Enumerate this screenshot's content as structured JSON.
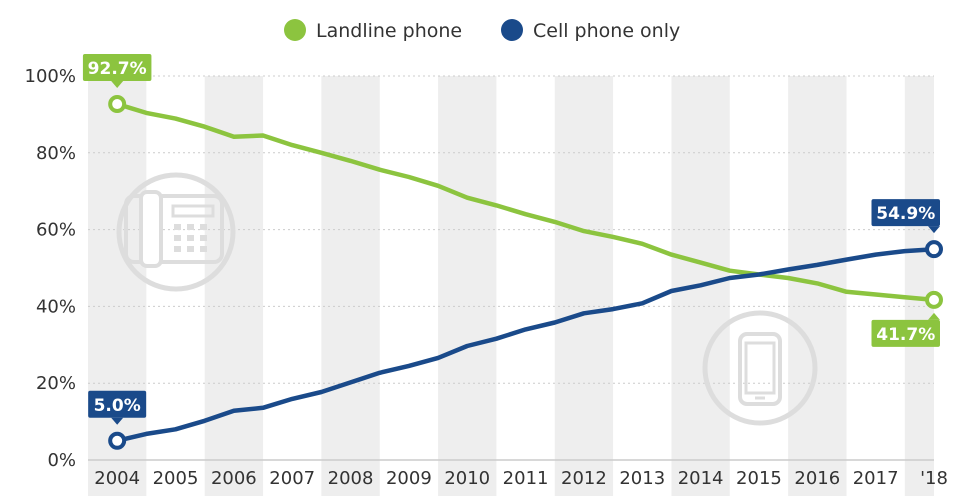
{
  "chart_data": {
    "type": "line",
    "categories": [
      "2004",
      "2005",
      "2006",
      "2007",
      "2008",
      "2009",
      "2010",
      "2011",
      "2012",
      "2013",
      "2014",
      "2015",
      "2016",
      "2017",
      "'18"
    ],
    "x": [
      2004.0,
      2004.5,
      2005.0,
      2005.5,
      2006.0,
      2006.5,
      2007.0,
      2007.5,
      2008.0,
      2008.5,
      2009.0,
      2009.5,
      2010.0,
      2010.5,
      2011.0,
      2011.5,
      2012.0,
      2012.5,
      2013.0,
      2013.5,
      2014.0,
      2014.5,
      2015.0,
      2015.5,
      2016.0,
      2016.5,
      2017.0,
      2017.5,
      2018.0
    ],
    "series": [
      {
        "name": "Landline phone",
        "color": "#8cc43f",
        "values": [
          92.7,
          90.4,
          88.9,
          86.8,
          84.2,
          84.5,
          82.0,
          80.0,
          77.9,
          75.6,
          73.7,
          71.4,
          68.3,
          66.3,
          64.0,
          62.0,
          59.6,
          58.1,
          56.3,
          53.5,
          51.4,
          49.3,
          48.3,
          47.4,
          46.0,
          43.8,
          43.1,
          42.4,
          41.7
        ]
      },
      {
        "name": "Cell phone only",
        "color": "#1a4a8a",
        "values": [
          5.0,
          6.8,
          8.0,
          10.2,
          12.8,
          13.6,
          15.9,
          17.7,
          20.2,
          22.7,
          24.5,
          26.6,
          29.7,
          31.6,
          34.0,
          35.8,
          38.2,
          39.3,
          40.8,
          44.0,
          45.5,
          47.4,
          48.3,
          49.6,
          50.8,
          52.2,
          53.5,
          54.4,
          54.9
        ]
      }
    ],
    "ylim": [
      0,
      100
    ],
    "yticks": [
      "0%",
      "20%",
      "40%",
      "60%",
      "80%",
      "100%"
    ],
    "ytick_values": [
      0,
      20,
      40,
      60,
      80,
      100
    ],
    "legend_position": "top-center",
    "grid": true,
    "callouts": [
      {
        "label": "92.7%",
        "series": 0,
        "index": 0,
        "placement": "above"
      },
      {
        "label": "5.0%",
        "series": 1,
        "index": 0,
        "placement": "above"
      },
      {
        "label": "54.9%",
        "series": 1,
        "index": 28,
        "placement": "above"
      },
      {
        "label": "41.7%",
        "series": 0,
        "index": 28,
        "placement": "below"
      }
    ],
    "band_color": "#eeeeee",
    "grid_color": "#cccccc"
  },
  "icons": [
    "office-phone-icon",
    "smartphone-icon"
  ]
}
